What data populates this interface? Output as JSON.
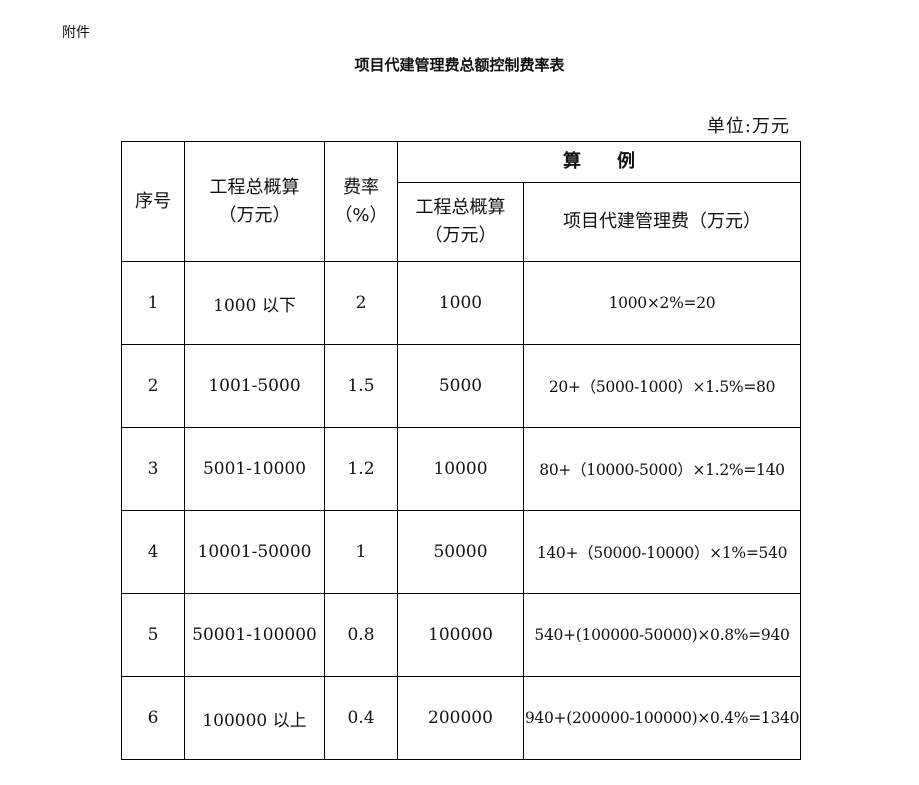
{
  "attachment_label": "附件",
  "title": "项目代建管理费总额控制费率表",
  "unit": "单位:万元",
  "headers": {
    "index": "序号",
    "total_budget": "工程总概算",
    "total_budget_unit": "（万元）",
    "rate": "费率",
    "rate_unit": "（%）",
    "example": "算　　例",
    "example_budget": "工程总概算",
    "example_budget_unit": "（万元）",
    "example_fee": "项目代建管理费（万元）"
  },
  "rows": [
    {
      "index": "1",
      "range": "1000 以下",
      "rate": "2",
      "budget": "1000",
      "calc": "1000×2%=20"
    },
    {
      "index": "2",
      "range": "1001-5000",
      "rate": "1.5",
      "budget": "5000",
      "calc": "20+（5000-1000）×1.5%=80"
    },
    {
      "index": "3",
      "range": "5001-10000",
      "rate": "1.2",
      "budget": "10000",
      "calc": "80+（10000-5000）×1.2%=140"
    },
    {
      "index": "4",
      "range": "10001-50000",
      "rate": "1",
      "budget": "50000",
      "calc": "140+（50000-10000）×1%=540"
    },
    {
      "index": "5",
      "range": "50001-100000",
      "rate": "0.8",
      "budget": "100000",
      "calc": "540+(100000-50000)×0.8%=940"
    },
    {
      "index": "6",
      "range": "100000 以上",
      "rate": "0.4",
      "budget": "200000",
      "calc": "940+(200000-100000)×0.4%=1340"
    }
  ]
}
